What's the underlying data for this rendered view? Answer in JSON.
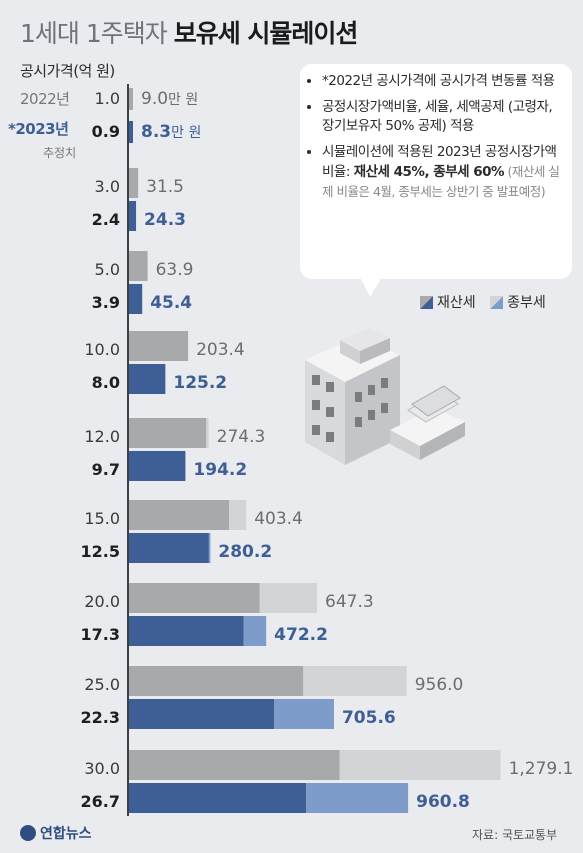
{
  "title": {
    "light": "1세대 1주택자",
    "bold": "보유세 시뮬레이션"
  },
  "unit_caption": "공시가격(억 원)",
  "year_2022": "2022년",
  "year_2023": "*2023년",
  "estimate_label": "추정치",
  "unit_label": "만 원",
  "notes": [
    {
      "text": "*2022년 공시가격에 공시가격 변동률 적용"
    },
    {
      "text": "공정시장가액비율, 세율, 세액공제 (고령자, 장기보유자 50% 공제) 적용"
    },
    {
      "text_a": "시뮬레이션에 적용된 2023년 공정시장가액비율: ",
      "text_b": "재산세 45%, 종부세 60%",
      "text_c": " (재산세 실제 비율은 4월, 종부세는 상반기 중 발표예정)"
    }
  ],
  "legend": {
    "property": "재산세",
    "comprehensive": "종부세"
  },
  "source": "자료: 국토교통부",
  "logo": "연합뉴스",
  "colors": {
    "bar_2022_property": "#a8a9ab",
    "bar_2022_comprehensive": "#d3d4d6",
    "bar_2023_property": "#3d5f95",
    "bar_2023_comprehensive": "#7d9cc9",
    "value_2023": "#3d5f95",
    "value_2022": "#6b6d70"
  },
  "chart_data": {
    "type": "bar",
    "unit": "만 원",
    "groups": [
      {
        "price_2022": "1.0",
        "price_2023": "0.9",
        "total_2022": "9.0",
        "total_2023": "8.3",
        "prop_2022": 9.0,
        "comp_2022": 0,
        "prop_2023": 8.3,
        "comp_2023": 0
      },
      {
        "price_2022": "3.0",
        "price_2023": "2.4",
        "total_2022": "31.5",
        "total_2023": "24.3",
        "prop_2022": 31.5,
        "comp_2022": 0,
        "prop_2023": 24.3,
        "comp_2023": 0
      },
      {
        "price_2022": "5.0",
        "price_2023": "3.9",
        "total_2022": "63.9",
        "total_2023": "45.4",
        "prop_2022": 63.9,
        "comp_2022": 0,
        "prop_2023": 45.4,
        "comp_2023": 0
      },
      {
        "price_2022": "10.0",
        "price_2023": "8.0",
        "total_2022": "203.4",
        "total_2023": "125.2",
        "prop_2022": 203.4,
        "comp_2022": 0,
        "prop_2023": 125.2,
        "comp_2023": 0
      },
      {
        "price_2022": "12.0",
        "price_2023": "9.7",
        "total_2022": "274.3",
        "total_2023": "194.2",
        "prop_2022": 266.0,
        "comp_2022": 8.3,
        "prop_2023": 194.2,
        "comp_2023": 0
      },
      {
        "price_2022": "15.0",
        "price_2023": "12.5",
        "total_2022": "403.4",
        "total_2023": "280.2",
        "prop_2022": 345.0,
        "comp_2022": 58.4,
        "prop_2023": 275.0,
        "comp_2023": 5.2
      },
      {
        "price_2022": "20.0",
        "price_2023": "17.3",
        "total_2022": "647.3",
        "total_2023": "472.2",
        "prop_2022": 450.0,
        "comp_2022": 197.3,
        "prop_2023": 395.0,
        "comp_2023": 77.2
      },
      {
        "price_2022": "25.0",
        "price_2023": "22.3",
        "total_2022": "956.0",
        "total_2023": "705.6",
        "prop_2022": 600.0,
        "comp_2022": 356.0,
        "prop_2023": 500.0,
        "comp_2023": 205.6
      },
      {
        "price_2022": "30.0",
        "price_2023": "26.7",
        "total_2022": "1,279.1",
        "total_2023": "960.8",
        "prop_2022": 725.0,
        "comp_2022": 554.1,
        "prop_2023": 610.0,
        "comp_2023": 350.8
      }
    ]
  }
}
